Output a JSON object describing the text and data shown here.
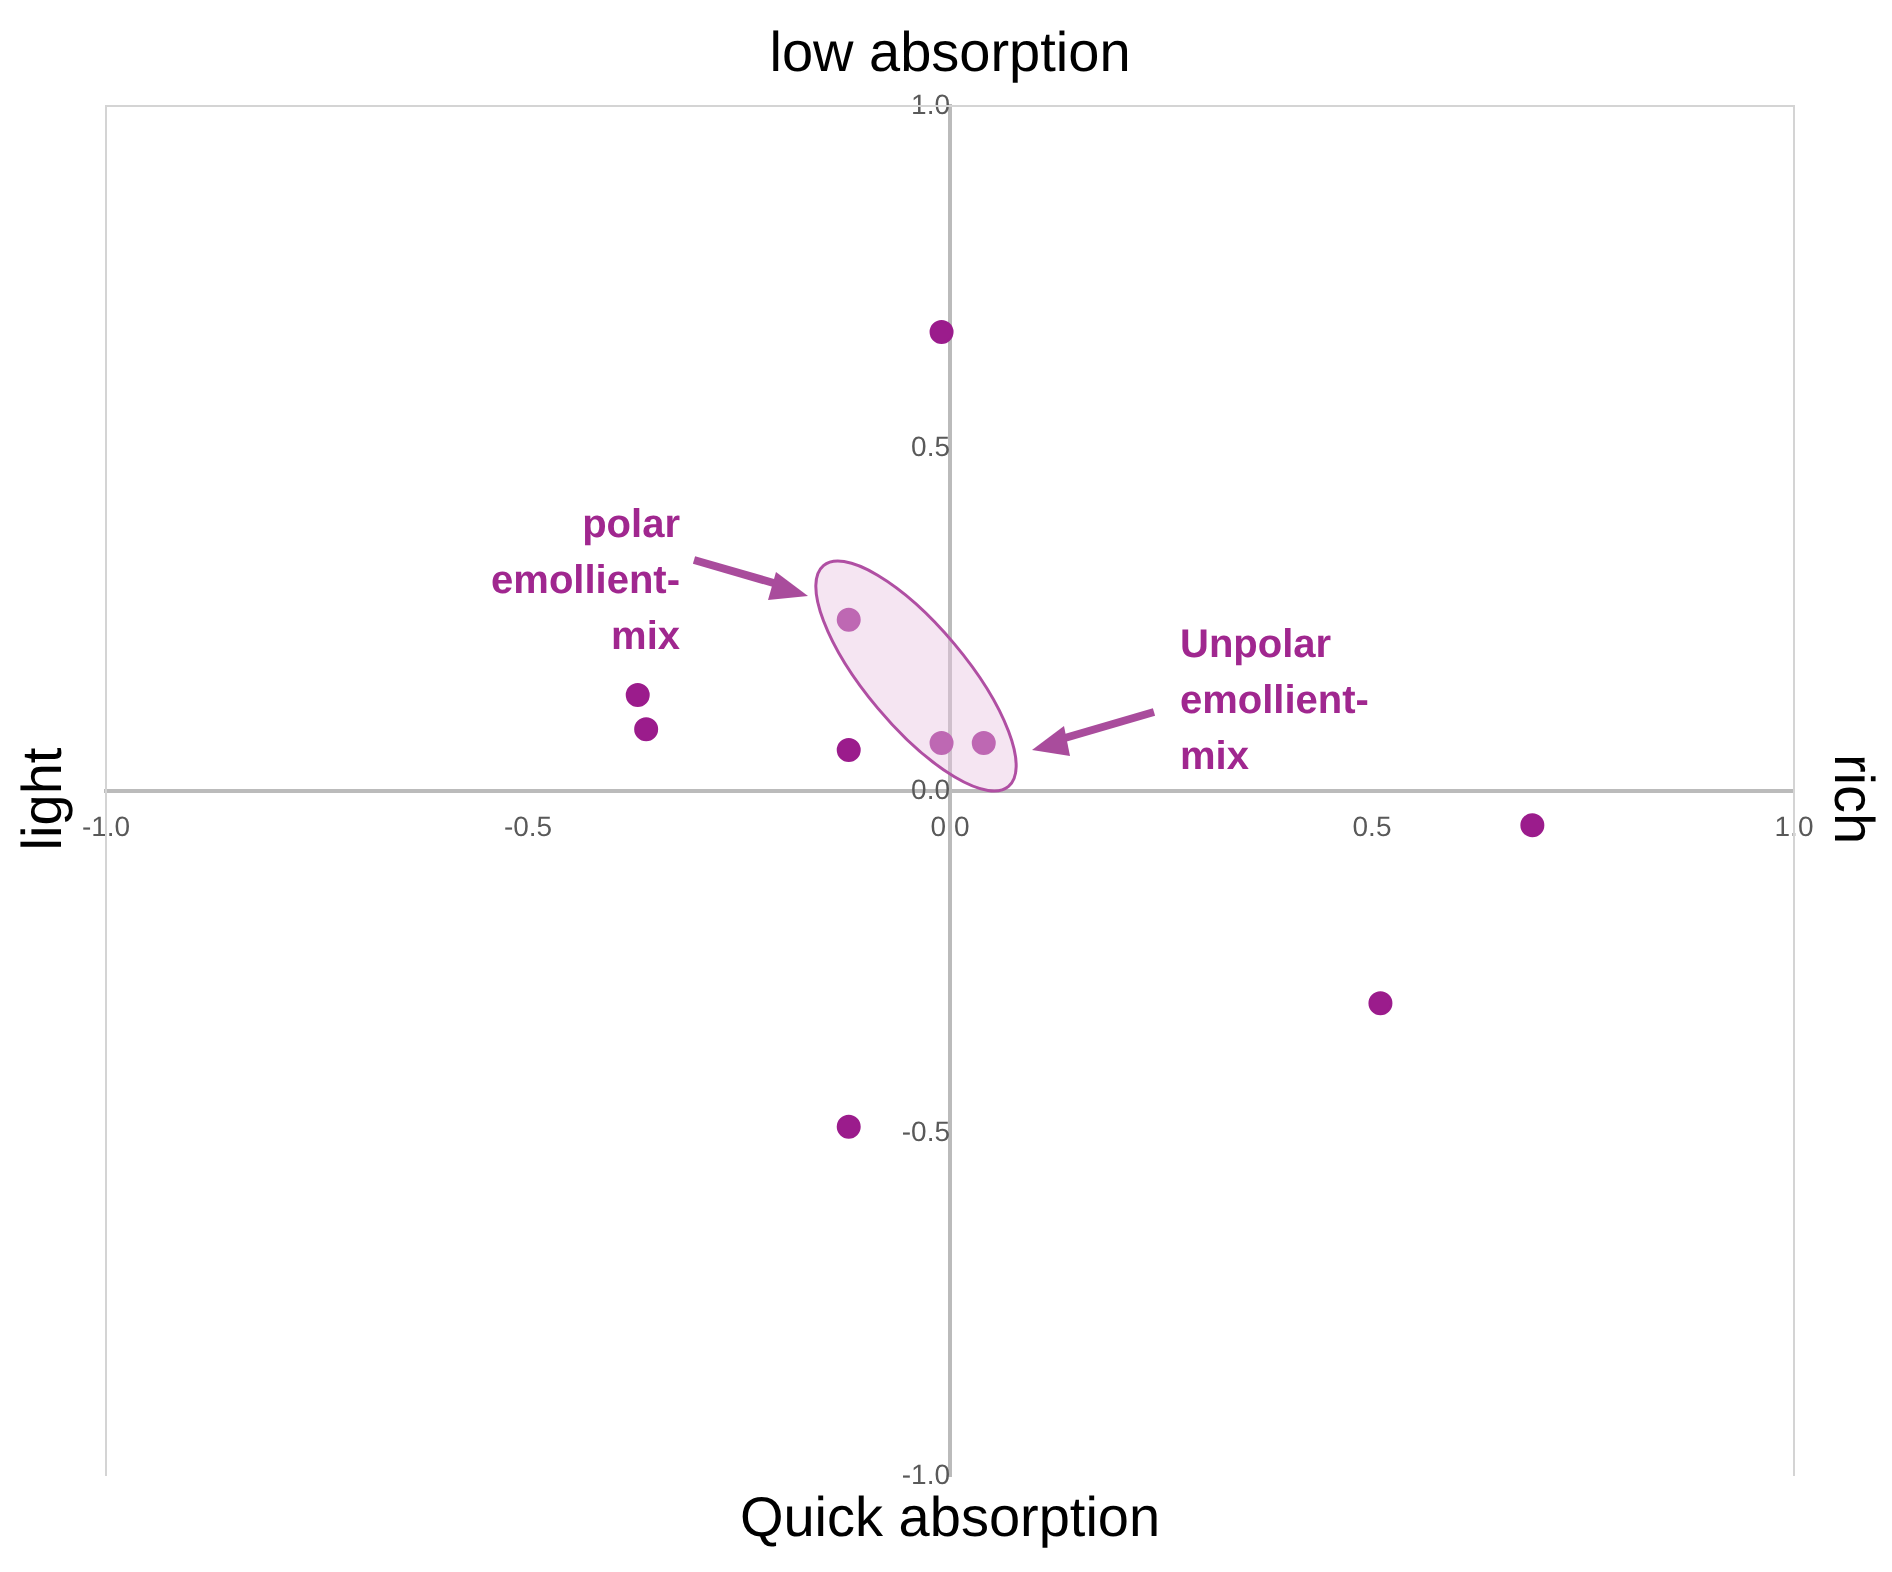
{
  "chart_data": {
    "type": "scatter",
    "x": [
      -0.01,
      -0.12,
      -0.37,
      -0.36,
      -0.12,
      -0.01,
      0.04,
      0.69,
      0.51,
      -0.12
    ],
    "values": [
      0.67,
      0.25,
      0.14,
      0.09,
      0.06,
      0.07,
      0.07,
      -0.05,
      -0.31,
      -0.49
    ],
    "color": "#9b1c8c",
    "marker": "circle",
    "xlim": [
      -1,
      1
    ],
    "xticks": [
      {
        "value": -1,
        "label": "-1.0"
      },
      {
        "value": -0.5,
        "label": "-0.5"
      },
      {
        "value": 0,
        "label": "0.0"
      },
      {
        "value": 0.5,
        "label": "0.5"
      },
      {
        "value": 1,
        "label": "1.0"
      }
    ],
    "ylim": [
      -1,
      1
    ],
    "yticks": [
      {
        "value": -1,
        "label": "-1.0"
      },
      {
        "value": -0.5,
        "label": "-0.5"
      },
      {
        "value": 0,
        "label": "0.0"
      },
      {
        "value": 0.5,
        "label": "0.5"
      },
      {
        "value": 1,
        "label": "1.0"
      }
    ],
    "grid": false,
    "legend": false,
    "annotations": [
      "low absorption",
      "Quick absorption",
      "light",
      "rich",
      "polar emollient-mix",
      "Unpolar emollient-mix"
    ]
  }
}
